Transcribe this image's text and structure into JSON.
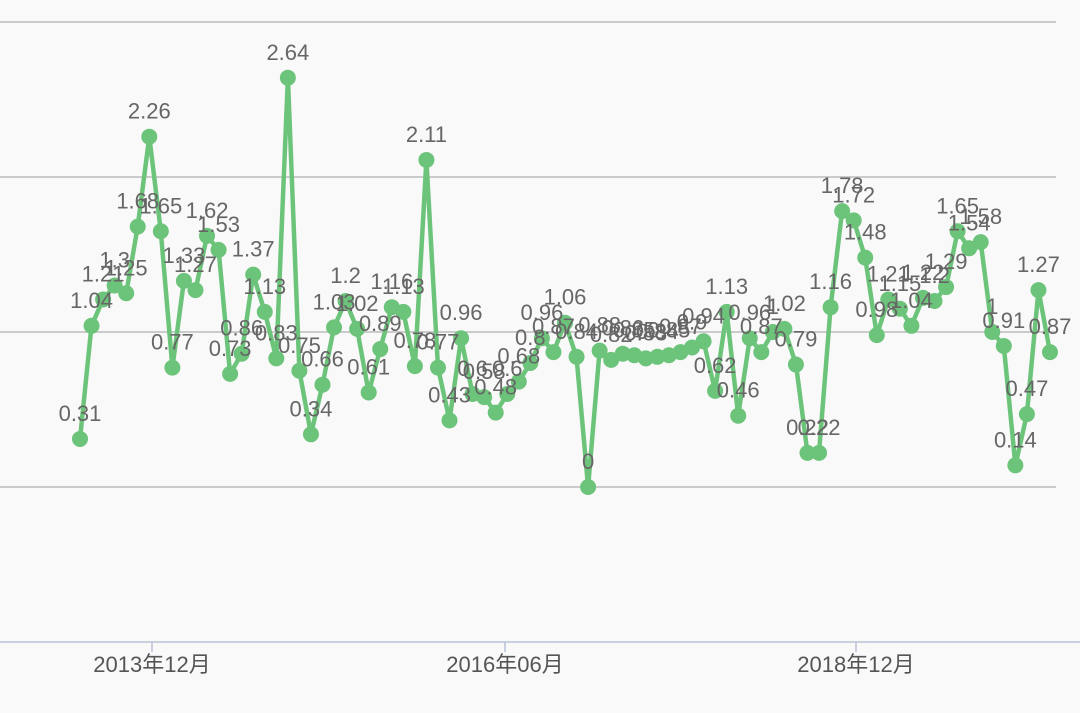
{
  "chart_data": {
    "type": "line",
    "title": "",
    "xlabel": "",
    "ylabel": "",
    "x_tick_labels": [
      "2013年12月",
      "2016年06月",
      "2018年12月"
    ],
    "ylim": [
      -1,
      3
    ],
    "grid": true,
    "series": [
      {
        "color": "#6cc47a",
        "values": [
          0.31,
          1.04,
          1.21,
          1.3,
          1.25,
          1.68,
          2.26,
          1.65,
          0.77,
          1.33,
          1.27,
          1.62,
          1.53,
          0.73,
          0.86,
          1.37,
          1.13,
          0.83,
          2.64,
          0.75,
          0.34,
          0.66,
          1.03,
          1.2,
          1.02,
          0.61,
          0.89,
          1.16,
          1.13,
          0.78,
          2.11,
          0.77,
          0.43,
          0.96,
          0.6,
          0.58,
          0.48,
          0.6,
          0.68,
          0.8,
          0.96,
          0.87,
          1.06,
          0.84,
          0,
          0.88,
          0.82,
          0.86,
          0.85,
          0.83,
          0.84,
          0.85,
          0.87,
          0.9,
          0.94,
          0.62,
          1.13,
          0.46,
          0.96,
          0.87,
          1.0,
          1.02,
          0.79,
          0.22,
          0.22,
          1.16,
          1.78,
          1.72,
          1.48,
          0.98,
          1.21,
          1.15,
          1.04,
          1.22,
          1.2,
          1.29,
          1.65,
          1.54,
          1.58,
          1.0,
          0.91,
          0.14,
          0.47,
          1.27,
          0.87
        ]
      }
    ]
  }
}
